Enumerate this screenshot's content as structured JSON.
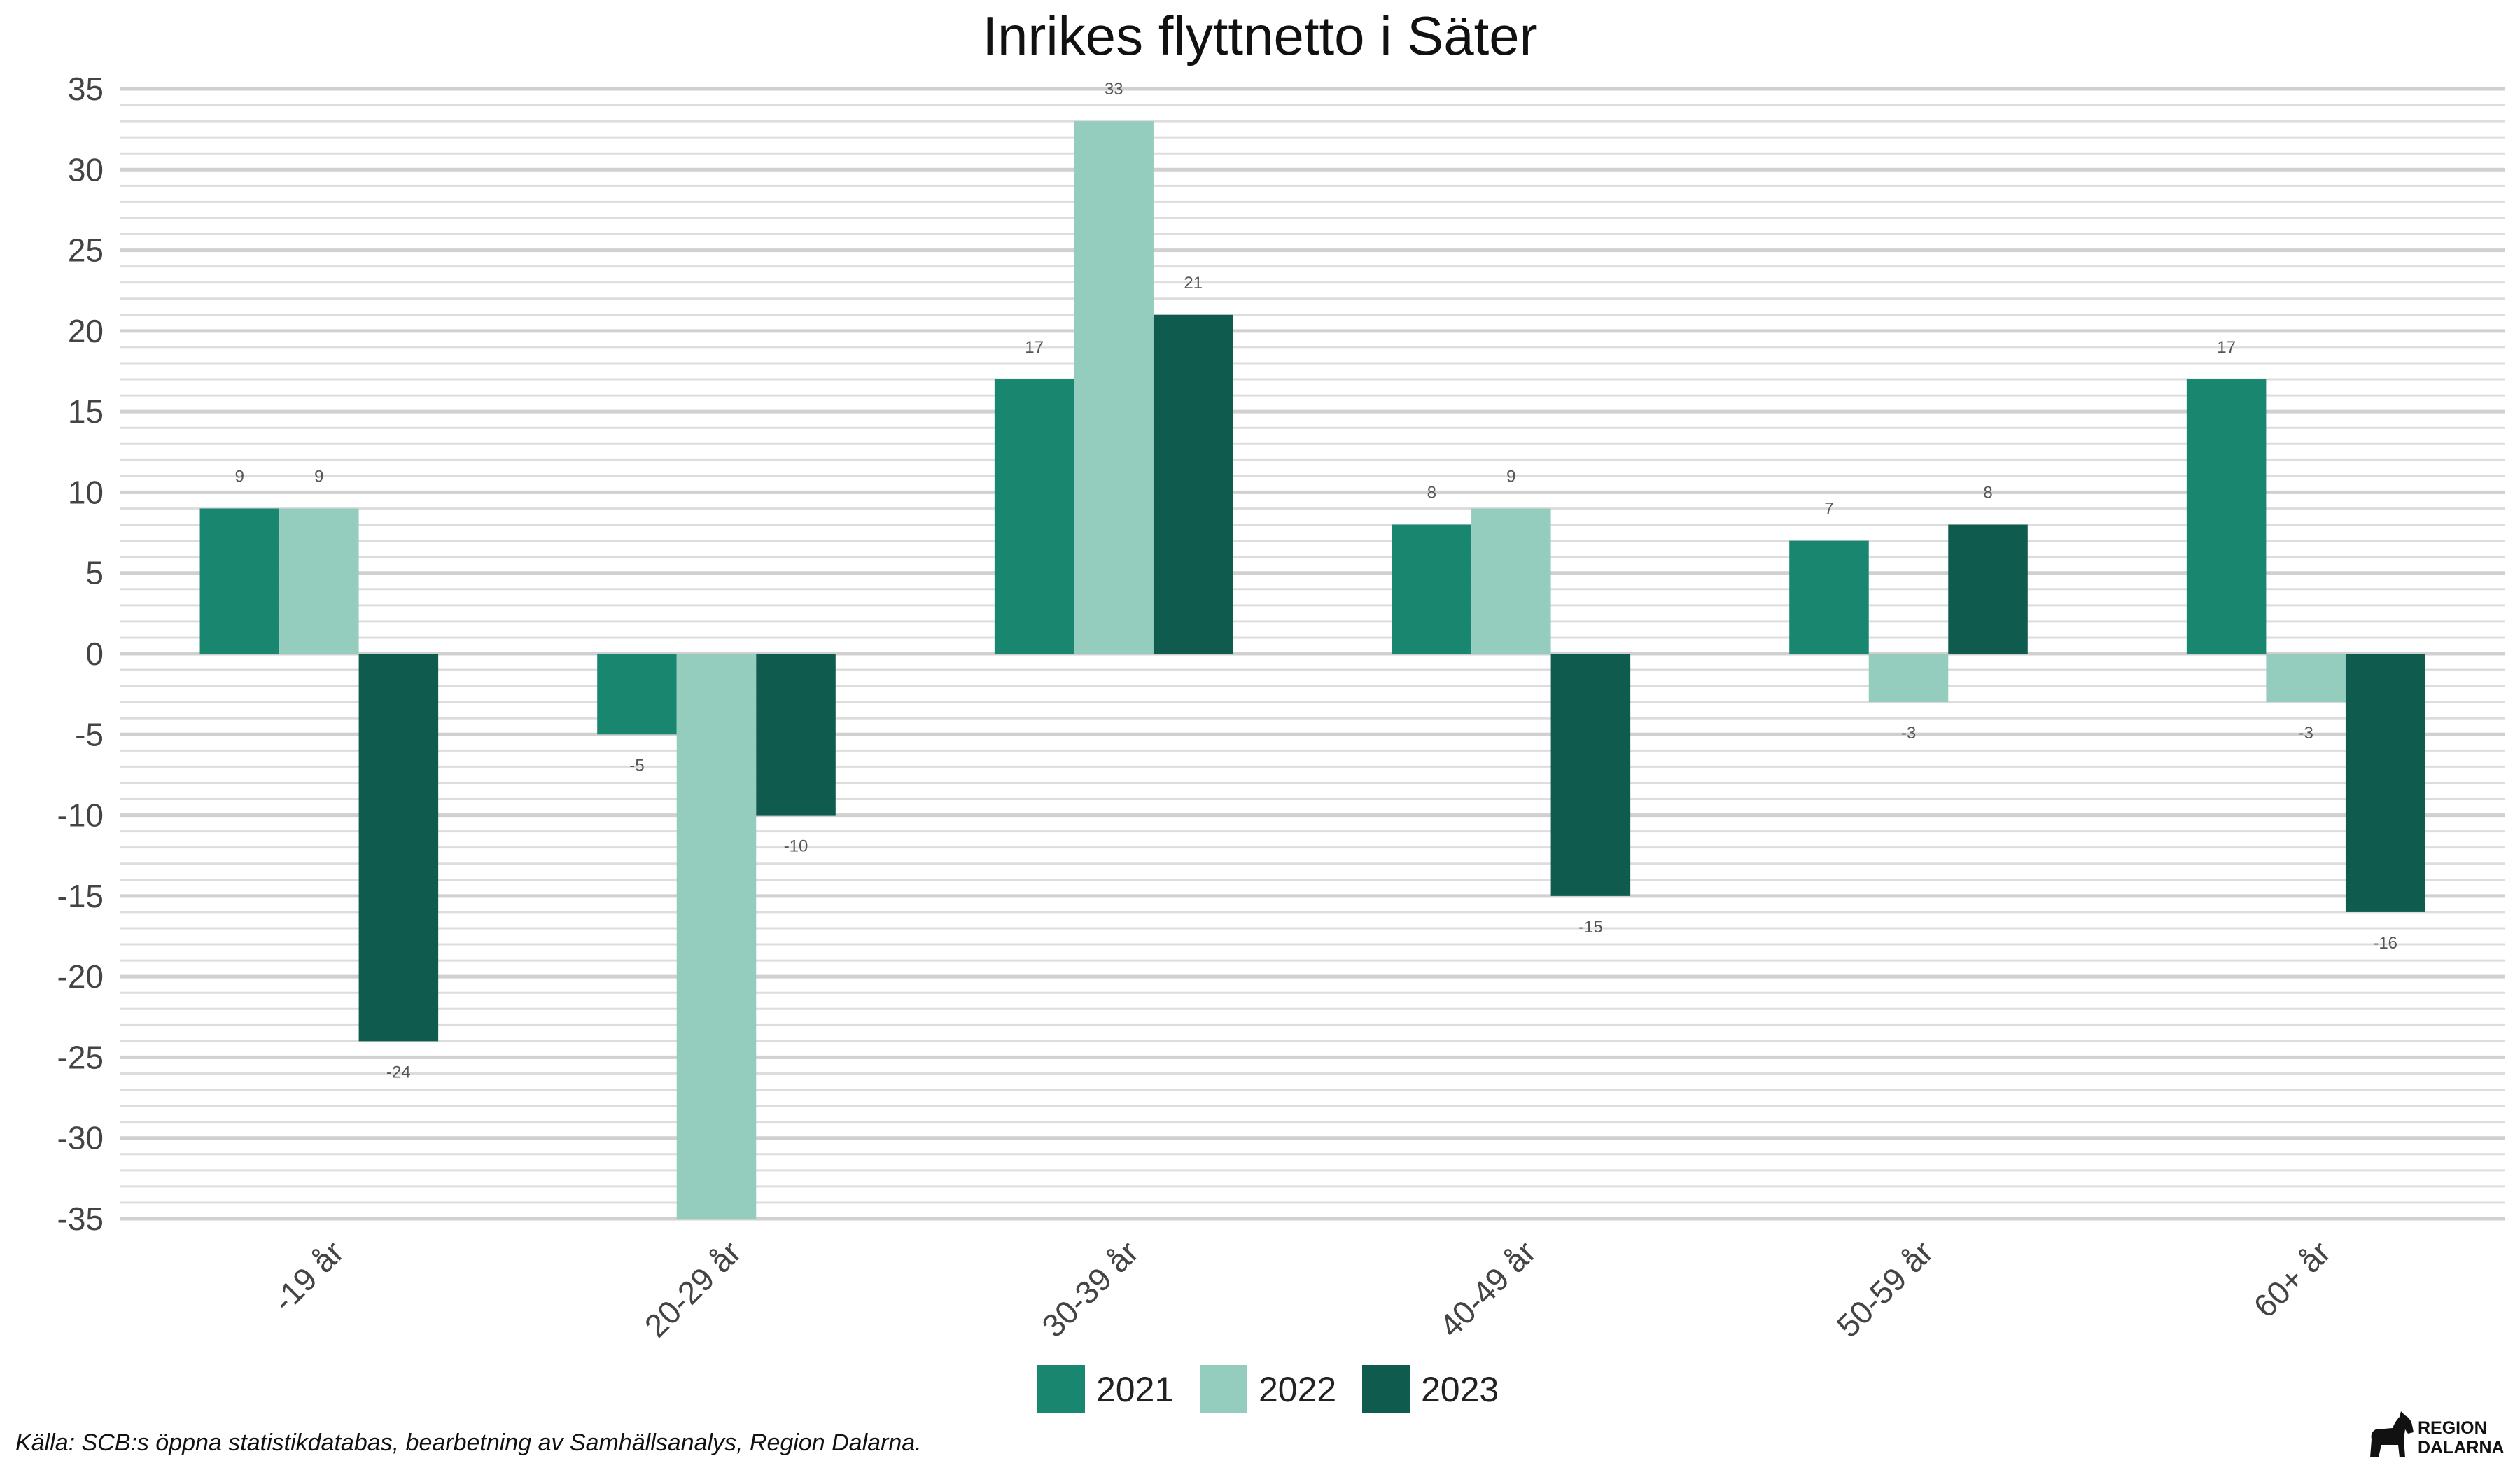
{
  "chart_data": {
    "type": "bar",
    "title": "Inrikes flyttnetto i Säter",
    "xlabel": "",
    "ylabel": "",
    "categories": [
      "-19 år",
      "20-29 år",
      "30-39 år",
      "40-49 år",
      "50-59 år",
      "60+ år"
    ],
    "series": [
      {
        "name": "2021",
        "color": "#19876f",
        "values": [
          9,
          -5,
          17,
          8,
          7,
          17
        ]
      },
      {
        "name": "2022",
        "color": "#94cdbe",
        "values": [
          9,
          -35,
          33,
          9,
          -3,
          -3
        ]
      },
      {
        "name": "2023",
        "color": "#0f5b4d",
        "values": [
          -24,
          -10,
          21,
          -15,
          8,
          -16
        ]
      }
    ],
    "data_labels": [
      [
        "9",
        "-5",
        "17",
        "8",
        "7",
        "17"
      ],
      [
        "9",
        "",
        "33",
        "9",
        "-3",
        "-3"
      ],
      [
        "-24",
        "-10",
        "21",
        "-15",
        "8",
        "-16"
      ]
    ],
    "ylim": [
      -35,
      35
    ],
    "yticks": [
      35,
      30,
      25,
      20,
      15,
      10,
      5,
      0,
      -5,
      -10,
      -15,
      -20,
      -25,
      -30,
      -35
    ],
    "grid": true,
    "legend_position": "bottom"
  },
  "caption": "Källa: SCB:s öppna statistikdatabas, bearbetning av Samhällsanalys, Region Dalarna.",
  "logo": {
    "line1": "REGION",
    "line2": "DALARNA"
  }
}
